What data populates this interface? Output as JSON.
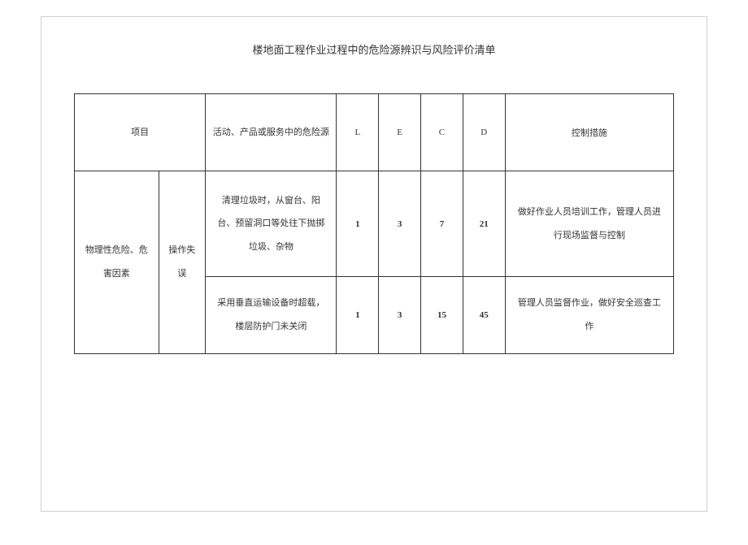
{
  "title": "楼地面工程作业过程中的危险源辨识与风险评价清单",
  "headers": {
    "project": "项目",
    "hazard_source": "活动、产品或服务中的危险源",
    "L": "L",
    "E": "E",
    "C": "C",
    "D": "D",
    "measures": "控制措施"
  },
  "category": {
    "main": "物理性危险、危害因素",
    "sub": "操作失误"
  },
  "rows": [
    {
      "hazard": "清理垃圾时，从窗台、阳台、预留洞口等处往下抛掷垃圾、杂物",
      "L": "1",
      "E": "3",
      "C": "7",
      "D": "21",
      "measures": "做好作业人员培训工作，管理人员进行现场监督与控制"
    },
    {
      "hazard": "采用垂直运输设备时超载，楼层防护门未关闭",
      "L": "1",
      "E": "3",
      "C": "15",
      "D": "45",
      "measures": "管理人员监督作业，做好安全巡查工作"
    }
  ],
  "styling": {
    "background_color": "#ffffff",
    "border_color": "#333333",
    "text_color": "#333333",
    "page_border_color": "#d0d0d0",
    "title_fontsize": 13,
    "table_fontsize": 11
  }
}
